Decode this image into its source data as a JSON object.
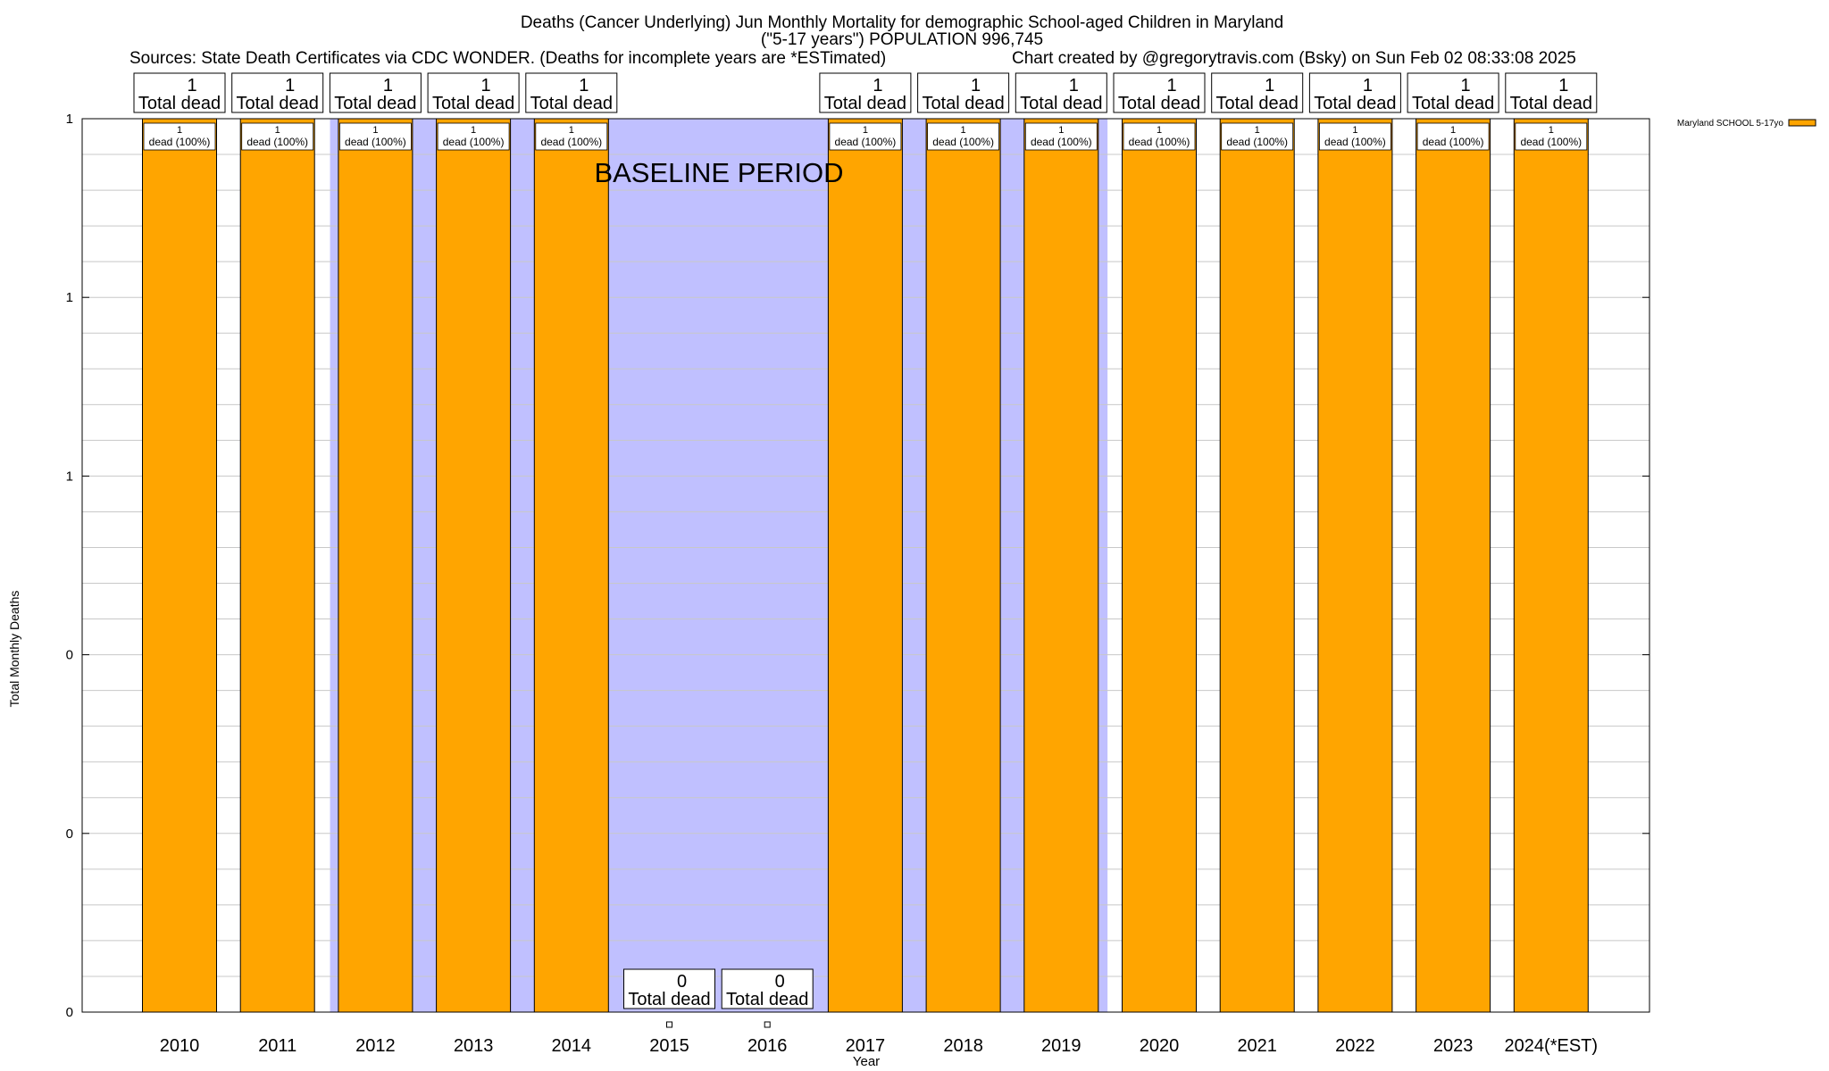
{
  "chart_data": {
    "type": "bar",
    "title_lines": [
      "Deaths (Cancer Underlying) Jun Monthly Mortality for demographic School-aged Children in Maryland",
      "(\"5-17 years\") POPULATION 996,745"
    ],
    "sources": "Sources: State Death Certificates via CDC WONDER. (Deaths for incomplete years are *ESTimated)",
    "credit": "Chart created by @gregorytravis.com (Bsky) on Sun Feb 02 08:33:08 2025",
    "xlabel": "Year",
    "ylabel": "Total Monthly Deaths",
    "ylim": [
      0,
      1
    ],
    "ytick_values": [
      0,
      0.2,
      0.4,
      0.6,
      0.8,
      1.0
    ],
    "ytick_labels": [
      "0",
      "0",
      "0",
      "1",
      "1",
      "1"
    ],
    "grid": true,
    "legend": {
      "label": "Maryland SCHOOL 5-17yo",
      "position": "top-right",
      "color": "#ffa500"
    },
    "baseline_label": "BASELINE PERIOD",
    "baseline_color": "#c0c0ff",
    "bar_color": "#ffa500",
    "total_suffix": "Total dead",
    "categories": [
      "2010",
      "2011",
      "2012",
      "2013",
      "2014",
      "2015",
      "2016",
      "2017",
      "2018",
      "2019",
      "2020",
      "2021",
      "2022",
      "2023",
      "2024(*EST)"
    ],
    "values": [
      1,
      1,
      1,
      1,
      1,
      0,
      0,
      1,
      1,
      1,
      1,
      1,
      1,
      1,
      1
    ],
    "inner_labels": [
      {
        "count": "1",
        "text": "dead (100%)"
      },
      {
        "count": "1",
        "text": "dead (100%)"
      },
      {
        "count": "1",
        "text": "dead (100%)"
      },
      {
        "count": "1",
        "text": "dead (100%)"
      },
      {
        "count": "1",
        "text": "dead (100%)"
      },
      null,
      null,
      {
        "count": "1",
        "text": "dead (100%)"
      },
      {
        "count": "1",
        "text": "dead (100%)"
      },
      {
        "count": "1",
        "text": "dead (100%)"
      },
      {
        "count": "1",
        "text": "dead (100%)"
      },
      {
        "count": "1",
        "text": "dead (100%)"
      },
      {
        "count": "1",
        "text": "dead (100%)"
      },
      {
        "count": "1",
        "text": "dead (100%)"
      },
      {
        "count": "1",
        "text": "dead (100%)"
      }
    ]
  }
}
